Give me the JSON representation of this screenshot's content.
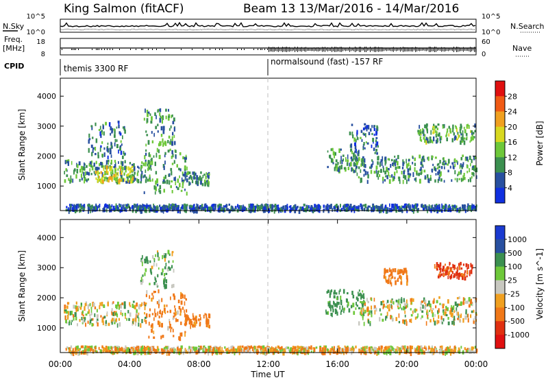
{
  "header": {
    "station": "King Salmon (fitACF)",
    "beam_date": "Beam 13 13/Mar/2016 - 14/Mar/2016"
  },
  "left_labels": {
    "nsky": "N.Sky",
    "freq": "Freq.",
    "freq_unit": "[MHz]",
    "cpid": "CPID"
  },
  "right_labels": {
    "nsearch": "N.Search",
    "nave": "Nave"
  },
  "noise_panel": {
    "left_ticks": [
      "10^5",
      "10^0"
    ],
    "right_ticks": [
      "10^5",
      "10^0"
    ]
  },
  "freq_panel": {
    "left_ticks": [
      "18",
      "8"
    ],
    "right_ticks": [
      "60",
      "0"
    ]
  },
  "cpid_panel": {
    "left_text": "themis 3300 RF",
    "right_text": "normalsound (fast) -157 RF"
  },
  "power_colorbar": {
    "label": "Power [dB]",
    "ticks": [
      "28",
      "24",
      "20",
      "16",
      "12",
      "8",
      "4"
    ],
    "colors": [
      "#e01010",
      "#f05a14",
      "#f0a020",
      "#d8d820",
      "#6ec83a",
      "#3c9050",
      "#2850a0",
      "#1030e0"
    ]
  },
  "velocity_colorbar": {
    "label": "Velocity [m s^-1]",
    "ticks": [
      "1000",
      "500",
      "100",
      "25",
      "-25",
      "-100",
      "-500",
      "-1000"
    ],
    "colors": [
      "#1a3ad0",
      "#2850a0",
      "#3c9050",
      "#6ec83a",
      "#c8c8c0",
      "#f0a020",
      "#f07818",
      "#e03010",
      "#e01010"
    ]
  },
  "chart_data": [
    {
      "type": "heatmap",
      "title": "Power",
      "ylabel": "Slant Range [km]",
      "yticks": [
        1000,
        2000,
        3000,
        4000
      ],
      "ylim": [
        180,
        4600
      ],
      "xlim_hours": [
        0,
        24
      ],
      "colorbar_label": "Power [dB]",
      "colorbar_range": [
        0,
        30
      ],
      "regions": [
        {
          "t0": 0.2,
          "t1": 5.2,
          "r0": 1150,
          "r1": 1900,
          "value": 10
        },
        {
          "t0": 2.0,
          "t1": 4.2,
          "r0": 1200,
          "r1": 1700,
          "value": 17
        },
        {
          "t0": 4.8,
          "t1": 7.3,
          "r0": 800,
          "r1": 2300,
          "value": 11
        },
        {
          "t0": 1.6,
          "t1": 3.7,
          "r0": 2000,
          "r1": 3200,
          "value": 8
        },
        {
          "t0": 4.8,
          "t1": 6.6,
          "r0": 2400,
          "r1": 3600,
          "value": 10
        },
        {
          "t0": 7.0,
          "t1": 8.6,
          "r0": 1100,
          "r1": 1500,
          "value": 9
        },
        {
          "t0": 15.3,
          "t1": 17.2,
          "r0": 1500,
          "r1": 2300,
          "value": 11
        },
        {
          "t0": 17.0,
          "t1": 24.0,
          "r0": 1200,
          "r1": 2050,
          "value": 10
        },
        {
          "t0": 16.6,
          "t1": 18.3,
          "r0": 2100,
          "r1": 3100,
          "value": 8
        },
        {
          "t0": 20.6,
          "t1": 23.9,
          "r0": 2500,
          "r1": 3100,
          "value": 12
        },
        {
          "t0": 0.3,
          "t1": 24.0,
          "r0": 220,
          "r1": 420,
          "value": 6
        }
      ]
    },
    {
      "type": "heatmap",
      "title": "Velocity",
      "ylabel": "Slant Range [km]",
      "yticks": [
        1000,
        2000,
        3000,
        4000
      ],
      "ylim": [
        180,
        4600
      ],
      "xlim_hours": [
        0,
        24
      ],
      "xticks": [
        "00:00",
        "04:00",
        "08:00",
        "12:00",
        "16:00",
        "20:00",
        "00:00"
      ],
      "xlabel": "Time UT",
      "colorbar_label": "Velocity [m s^-1]",
      "colorbar_range": [
        -1000,
        1000
      ],
      "regions": [
        {
          "t0": 0.2,
          "t1": 5.0,
          "r0": 1150,
          "r1": 1900,
          "value": 0
        },
        {
          "t0": 4.8,
          "t1": 7.3,
          "r0": 700,
          "r1": 2300,
          "value": -150
        },
        {
          "t0": 4.6,
          "t1": 6.6,
          "r0": 2400,
          "r1": 3600,
          "value": 100
        },
        {
          "t0": 7.0,
          "t1": 8.6,
          "r0": 1100,
          "r1": 1500,
          "value": -200
        },
        {
          "t0": 15.3,
          "t1": 17.5,
          "r0": 1500,
          "r1": 2300,
          "value": 200
        },
        {
          "t0": 17.2,
          "t1": 24.0,
          "r0": 1200,
          "r1": 2050,
          "value": 0
        },
        {
          "t0": 18.5,
          "t1": 20.0,
          "r0": 2500,
          "r1": 3000,
          "value": -200
        },
        {
          "t0": 21.5,
          "t1": 23.8,
          "r0": 2700,
          "r1": 3200,
          "value": -600
        },
        {
          "t0": 0.3,
          "t1": 24.0,
          "r0": 220,
          "r1": 420,
          "value": -50
        }
      ]
    }
  ]
}
